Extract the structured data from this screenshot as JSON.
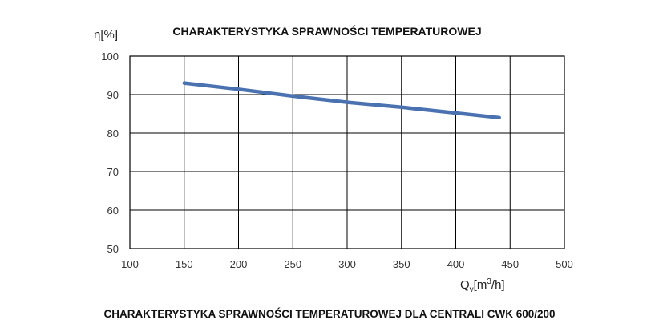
{
  "chart_data": {
    "type": "line",
    "title": "CHARAKTERYSTYKA SPRAWNOŚCI TEMPERATUROWEJ",
    "ylabel": "η[%]",
    "xlabel_main": "Q",
    "xlabel_sub": "v",
    "xlabel_unit": "[m",
    "xlabel_sup": "3",
    "xlabel_end": "/h]",
    "caption": "CHARAKTERYSTYKA SPRAWNOŚCI TEMPERATUROWEJ DLA CENTRALI CWK 600/200",
    "xlim": [
      100,
      500
    ],
    "ylim": [
      50,
      100
    ],
    "x_ticks": [
      100,
      150,
      200,
      250,
      300,
      350,
      400,
      450,
      500
    ],
    "y_ticks": [
      50,
      60,
      70,
      80,
      90,
      100
    ],
    "grid": true,
    "series": [
      {
        "color": "#4a72b0",
        "x": [
          150,
          200,
          250,
          300,
          350,
          400,
          440
        ],
        "y": [
          93,
          91.4,
          89.6,
          88.0,
          86.7,
          85.2,
          84.0
        ]
      }
    ]
  }
}
